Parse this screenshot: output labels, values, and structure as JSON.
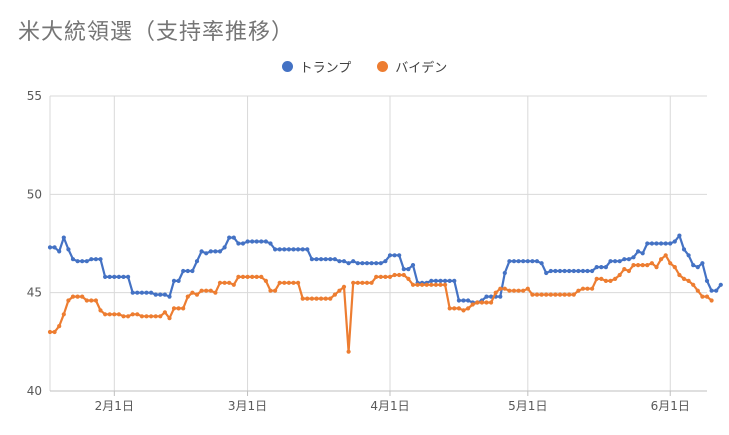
{
  "chart_data": {
    "type": "line",
    "title": "米大統領選（支持率推移）",
    "xlabel": "",
    "ylabel": "",
    "ylim": [
      40,
      55
    ],
    "y_ticks": [
      "40",
      "45",
      "50",
      "55"
    ],
    "x_tick_labels": [
      "2月1日",
      "3月1日",
      "4月1日",
      "5月1日",
      "6月1日"
    ],
    "x_ticks": [
      "2024-02-01",
      "2024-03-01",
      "2024-04-01",
      "2024-05-01",
      "2024-06-01"
    ],
    "x_start": "2024-01-18",
    "x_end": "2024-06-09",
    "grid": "vertical",
    "legend_position": "top",
    "series": [
      {
        "name": "トランプ",
        "color": "#4472c4",
        "values": [
          47.3,
          47.3,
          47.1,
          47.8,
          47.2,
          46.7,
          46.6,
          46.6,
          46.6,
          46.7,
          46.7,
          46.7,
          45.8,
          45.8,
          45.8,
          45.8,
          45.8,
          45.8,
          45.0,
          45.0,
          45.0,
          45.0,
          45.0,
          44.9,
          44.9,
          44.9,
          44.8,
          45.6,
          45.6,
          46.1,
          46.1,
          46.1,
          46.6,
          47.1,
          47.0,
          47.1,
          47.1,
          47.1,
          47.3,
          47.8,
          47.8,
          47.5,
          47.5,
          47.6,
          47.6,
          47.6,
          47.6,
          47.6,
          47.5,
          47.2,
          47.2,
          47.2,
          47.2,
          47.2,
          47.2,
          47.2,
          47.2,
          46.7,
          46.7,
          46.7,
          46.7,
          46.7,
          46.7,
          46.6,
          46.6,
          46.5,
          46.6,
          46.5,
          46.5,
          46.5,
          46.5,
          46.5,
          46.5,
          46.6,
          46.9,
          46.9,
          46.9,
          46.2,
          46.2,
          46.4,
          45.5,
          45.5,
          45.5,
          45.6,
          45.6,
          45.6,
          45.6,
          45.6,
          45.6,
          44.6,
          44.6,
          44.6,
          44.5,
          44.5,
          44.6,
          44.8,
          44.8,
          44.8,
          44.8,
          46.0,
          46.6,
          46.6,
          46.6,
          46.6,
          46.6,
          46.6,
          46.6,
          46.5,
          46.0,
          46.1,
          46.1,
          46.1,
          46.1,
          46.1,
          46.1,
          46.1,
          46.1,
          46.1,
          46.1,
          46.3,
          46.3,
          46.3,
          46.6,
          46.6,
          46.6,
          46.7,
          46.7,
          46.8,
          47.1,
          47.0,
          47.5,
          47.5,
          47.5,
          47.5,
          47.5,
          47.5,
          47.6,
          47.9,
          47.2,
          46.9,
          46.4,
          46.3,
          46.5,
          45.6,
          45.1,
          45.1,
          45.4
        ]
      },
      {
        "name": "バイデン",
        "color": "#ed7d31",
        "values": [
          43.0,
          43.0,
          43.3,
          43.9,
          44.6,
          44.8,
          44.8,
          44.8,
          44.6,
          44.6,
          44.6,
          44.1,
          43.9,
          43.9,
          43.9,
          43.9,
          43.8,
          43.8,
          43.9,
          43.9,
          43.8,
          43.8,
          43.8,
          43.8,
          43.8,
          44.0,
          43.7,
          44.2,
          44.2,
          44.2,
          44.8,
          45.0,
          44.9,
          45.1,
          45.1,
          45.1,
          45.0,
          45.5,
          45.5,
          45.5,
          45.4,
          45.8,
          45.8,
          45.8,
          45.8,
          45.8,
          45.8,
          45.6,
          45.1,
          45.1,
          45.5,
          45.5,
          45.5,
          45.5,
          45.5,
          44.7,
          44.7,
          44.7,
          44.7,
          44.7,
          44.7,
          44.7,
          44.9,
          45.1,
          45.3,
          42.0,
          45.5,
          45.5,
          45.5,
          45.5,
          45.5,
          45.8,
          45.8,
          45.8,
          45.8,
          45.9,
          45.9,
          45.9,
          45.7,
          45.4,
          45.4,
          45.4,
          45.4,
          45.4,
          45.4,
          45.4,
          45.4,
          44.2,
          44.2,
          44.2,
          44.1,
          44.2,
          44.4,
          44.5,
          44.5,
          44.5,
          44.5,
          45.0,
          45.2,
          45.2,
          45.1,
          45.1,
          45.1,
          45.1,
          45.2,
          44.9,
          44.9,
          44.9,
          44.9,
          44.9,
          44.9,
          44.9,
          44.9,
          44.9,
          44.9,
          45.1,
          45.2,
          45.2,
          45.2,
          45.7,
          45.7,
          45.6,
          45.6,
          45.7,
          45.9,
          46.2,
          46.1,
          46.4,
          46.4,
          46.4,
          46.4,
          46.5,
          46.3,
          46.7,
          46.9,
          46.5,
          46.3,
          45.9,
          45.7,
          45.6,
          45.4,
          45.1,
          44.8,
          44.8,
          44.6
        ]
      }
    ]
  }
}
